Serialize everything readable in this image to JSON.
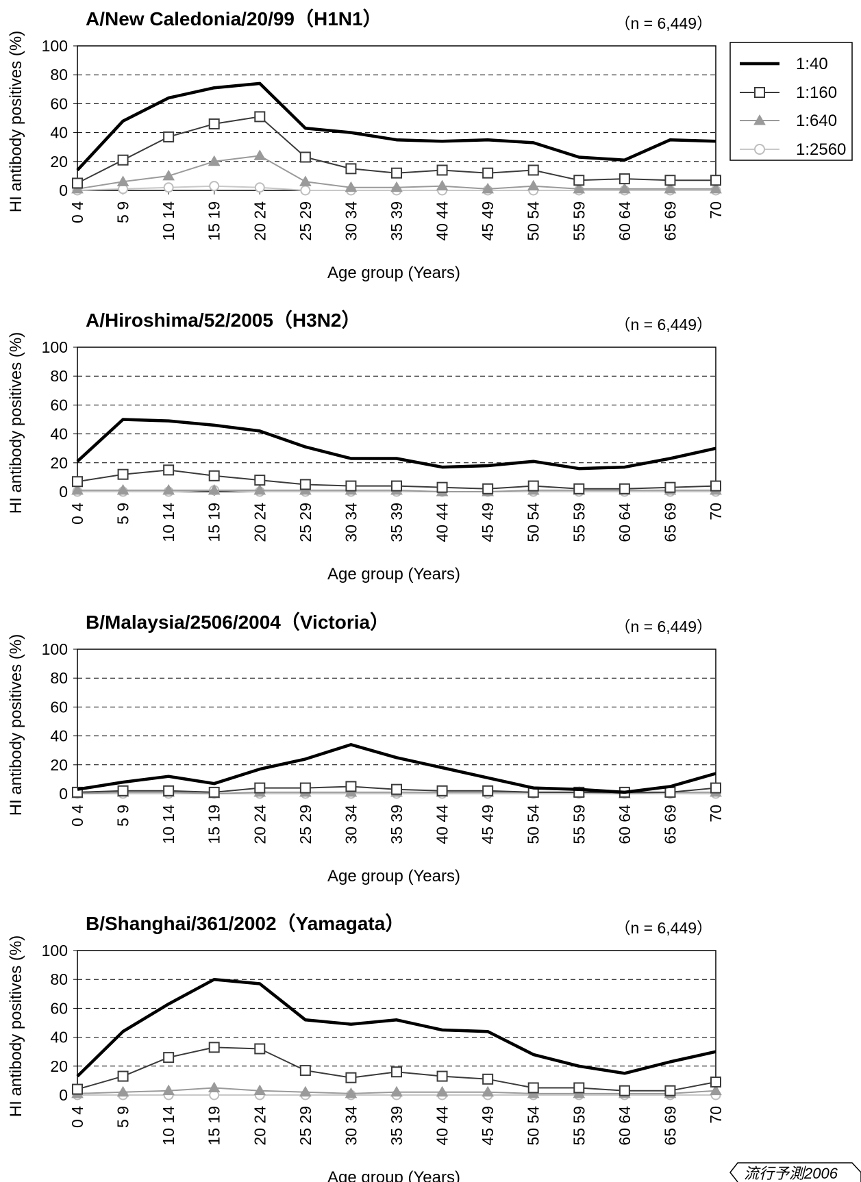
{
  "chart_data": [
    {
      "type": "line",
      "title": "A/New Caledonia/20/99（H1N1）",
      "subtitle": "（n = 6,449）",
      "xlabel": "Age group (Years)",
      "ylabel": "HI antibody positives (%)",
      "ylim": [
        0,
        100
      ],
      "y_ticks": [
        "0",
        "20",
        "40",
        "60",
        "80",
        "100"
      ],
      "grid": "horizontal dashed",
      "categories": [
        "0 4",
        "5 9",
        "10 14",
        "15 19",
        "20 24",
        "25 29",
        "30 34",
        "35 39",
        "40 44",
        "45 49",
        "50 54",
        "55 59",
        "60 64",
        "65 69",
        "70"
      ],
      "series": [
        {
          "name": "1:40",
          "values": [
            14,
            48,
            64,
            71,
            74,
            43,
            40,
            35,
            34,
            35,
            33,
            23,
            21,
            35,
            34
          ]
        },
        {
          "name": "1:160",
          "values": [
            5,
            21,
            37,
            46,
            51,
            23,
            15,
            12,
            14,
            12,
            14,
            7,
            8,
            7,
            7
          ]
        },
        {
          "name": "1:640",
          "values": [
            1,
            6,
            10,
            20,
            24,
            6,
            2,
            2,
            3,
            1,
            3,
            1,
            1,
            1,
            1
          ]
        },
        {
          "name": "1:2560",
          "values": [
            0,
            1,
            2,
            3,
            2,
            0,
            0,
            0,
            0,
            0,
            0,
            0,
            0,
            0,
            0
          ]
        }
      ]
    },
    {
      "type": "line",
      "title": "A/Hiroshima/52/2005（H3N2）",
      "subtitle": "（n = 6,449）",
      "xlabel": "Age group (Years)",
      "ylabel": "HI antibody positives (%)",
      "ylim": [
        0,
        100
      ],
      "y_ticks": [
        "0",
        "20",
        "40",
        "60",
        "80",
        "100"
      ],
      "grid": "horizontal dashed",
      "categories": [
        "0 4",
        "5 9",
        "10 14",
        "15 19",
        "20 24",
        "25 29",
        "30 34",
        "35 39",
        "40 44",
        "45 49",
        "50 54",
        "55 59",
        "60 64",
        "65 69",
        "70"
      ],
      "series": [
        {
          "name": "1:40",
          "values": [
            21,
            50,
            49,
            46,
            42,
            31,
            23,
            23,
            17,
            18,
            21,
            16,
            17,
            23,
            30
          ]
        },
        {
          "name": "1:160",
          "values": [
            7,
            12,
            15,
            11,
            8,
            5,
            4,
            4,
            3,
            2,
            4,
            2,
            2,
            3,
            4
          ]
        },
        {
          "name": "1:640",
          "values": [
            1,
            1,
            1,
            1,
            1,
            1,
            1,
            1,
            0,
            0,
            1,
            1,
            1,
            1,
            1
          ]
        },
        {
          "name": "1:2560",
          "values": [
            0,
            0,
            0,
            1,
            0,
            0,
            0,
            0,
            0,
            0,
            0,
            0,
            0,
            0,
            0
          ]
        }
      ]
    },
    {
      "type": "line",
      "title": "B/Malaysia/2506/2004（Victoria）",
      "subtitle": "（n = 6,449）",
      "xlabel": "Age group (Years)",
      "ylabel": "HI antibody positives (%)",
      "ylim": [
        0,
        100
      ],
      "y_ticks": [
        "0",
        "20",
        "40",
        "60",
        "80",
        "100"
      ],
      "grid": "horizontal dashed",
      "categories": [
        "0 4",
        "5 9",
        "10 14",
        "15 19",
        "20 24",
        "25 29",
        "30 34",
        "35 39",
        "40 44",
        "45 49",
        "50 54",
        "55 59",
        "60 64",
        "65 69",
        "70"
      ],
      "series": [
        {
          "name": "1:40",
          "values": [
            3,
            8,
            12,
            7,
            17,
            24,
            34,
            25,
            18,
            11,
            4,
            3,
            1,
            5,
            14
          ]
        },
        {
          "name": "1:160",
          "values": [
            1,
            2,
            2,
            1,
            4,
            4,
            5,
            3,
            2,
            2,
            1,
            1,
            1,
            1,
            4
          ]
        },
        {
          "name": "1:640",
          "values": [
            0,
            1,
            1,
            0,
            1,
            1,
            1,
            1,
            1,
            1,
            1,
            1,
            0,
            1,
            1
          ]
        },
        {
          "name": "1:2560",
          "values": [
            0,
            0,
            0,
            0,
            0,
            0,
            0,
            0,
            0,
            0,
            0,
            0,
            0,
            0,
            0
          ]
        }
      ]
    },
    {
      "type": "line",
      "title": "B/Shanghai/361/2002（Yamagata）",
      "subtitle": "（n = 6,449）",
      "xlabel": "Age group (Years)",
      "ylabel": "HI antibody positives (%)",
      "ylim": [
        0,
        100
      ],
      "y_ticks": [
        "0",
        "20",
        "40",
        "60",
        "80",
        "100"
      ],
      "grid": "horizontal dashed",
      "categories": [
        "0 4",
        "5 9",
        "10 14",
        "15 19",
        "20 24",
        "25 29",
        "30 34",
        "35 39",
        "40 44",
        "45 49",
        "50 54",
        "55 59",
        "60 64",
        "65 69",
        "70"
      ],
      "series": [
        {
          "name": "1:40",
          "values": [
            13,
            44,
            63,
            80,
            77,
            52,
            49,
            52,
            45,
            44,
            28,
            20,
            15,
            23,
            30
          ]
        },
        {
          "name": "1:160",
          "values": [
            4,
            13,
            26,
            33,
            32,
            17,
            12,
            16,
            13,
            11,
            5,
            5,
            3,
            3,
            9
          ]
        },
        {
          "name": "1:640",
          "values": [
            1,
            2,
            3,
            5,
            3,
            2,
            1,
            2,
            2,
            2,
            1,
            1,
            1,
            1,
            3
          ]
        },
        {
          "name": "1:2560",
          "values": [
            0,
            0,
            0,
            0,
            0,
            0,
            0,
            0,
            0,
            0,
            0,
            0,
            0,
            0,
            0
          ]
        }
      ]
    }
  ],
  "legend": {
    "placement": "top-right",
    "items": [
      {
        "label": "1:40",
        "color": "#000000",
        "marker": "none"
      },
      {
        "label": "1:160",
        "color": "#3a3a3a",
        "marker": "open-square"
      },
      {
        "label": "1:640",
        "color": "#9a9a9a",
        "marker": "filled-triangle"
      },
      {
        "label": "1:2560",
        "color": "#c8c8c8",
        "marker": "open-circle"
      }
    ]
  },
  "footer": {
    "text": "流行予測2006"
  }
}
